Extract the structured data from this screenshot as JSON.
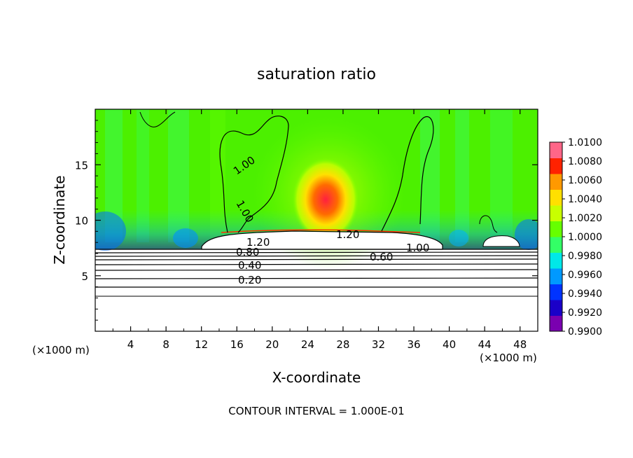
{
  "chart_data": {
    "type": "heatmap",
    "title": "saturation ratio",
    "xlabel": "X-coordinate",
    "ylabel": "Z-coordinate",
    "x_unit_left": "(×1000 m)",
    "x_unit_right": "(×1000 m)",
    "footer": "CONTOUR INTERVAL = 1.000E-01",
    "xlim": [
      0,
      50
    ],
    "ylim": [
      0,
      20
    ],
    "x_ticks": [
      "4",
      "8",
      "12",
      "16",
      "20",
      "24",
      "28",
      "32",
      "36",
      "40",
      "44",
      "48"
    ],
    "y_ticks": [
      "5",
      "10",
      "15"
    ],
    "colorbar": {
      "min": 0.99,
      "max": 1.01,
      "labels": [
        "1.0100",
        "1.0080",
        "1.0060",
        "1.0040",
        "1.0020",
        "1.0000",
        "0.9980",
        "0.9960",
        "0.9940",
        "0.9920",
        "0.9900"
      ],
      "colors": [
        "#7a00b0",
        "#1a00c8",
        "#0033ff",
        "#0099ff",
        "#00e8e8",
        "#33ff66",
        "#66ff00",
        "#c8ff00",
        "#ffe000",
        "#ff9900",
        "#ff2200",
        "#ff6688"
      ]
    },
    "contour_labels": [
      "1.00",
      "1.00",
      "1.20",
      "1.20",
      "1.00",
      "0.80",
      "0.60",
      "0.40",
      "0.20"
    ]
  }
}
